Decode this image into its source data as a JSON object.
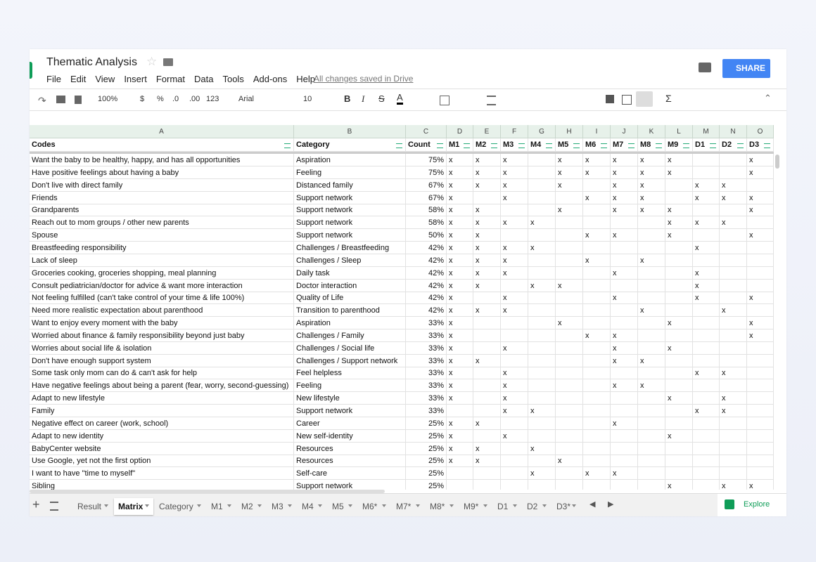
{
  "doc_title": "Thematic Analysis",
  "menu": [
    "File",
    "Edit",
    "View",
    "Insert",
    "Format",
    "Data",
    "Tools",
    "Add-ons",
    "Help"
  ],
  "save_status": "All changes saved in Drive",
  "share": "SHARE",
  "toolbar": {
    "zoom": "100%",
    "currency": "$",
    "percent": "%",
    "dec_less": ".0",
    "dec_more": ".00",
    "format": "123",
    "font": "Arial",
    "size": "10"
  },
  "column_letters": [
    "A",
    "B",
    "C",
    "D",
    "E",
    "F",
    "G",
    "H",
    "I",
    "J",
    "K",
    "L",
    "M",
    "N",
    "O"
  ],
  "headers": [
    "Codes",
    "Category",
    "Count",
    "M1",
    "M2",
    "M3",
    "M4",
    "M5",
    "M6",
    "M7",
    "M8",
    "M9",
    "D1",
    "D2",
    "D3"
  ],
  "rows": [
    {
      "code": "Want the baby to be healthy, happy, and has all opportunities",
      "category": "Aspiration",
      "count": "75%",
      "cells": {
        "M1": "x",
        "M2": "x",
        "M3": "x",
        "M5": "x",
        "M6": "x",
        "M7": "x",
        "M8": "x",
        "M9": "x",
        "D3": "x"
      }
    },
    {
      "code": "Have positive feelings about having a baby",
      "category": "Feeling",
      "count": "75%",
      "cells": {
        "M1": "x",
        "M2": "x",
        "M3": "x",
        "M5": "x",
        "M6": "x",
        "M7": "x",
        "M8": "x",
        "M9": "x",
        "D3": "x"
      }
    },
    {
      "code": "Don't live with direct family",
      "category": "Distanced family",
      "count": "67%",
      "cells": {
        "M1": "x",
        "M2": "x",
        "M3": "x",
        "M5": "x",
        "M7": "x",
        "M8": "x",
        "D1": "x",
        "D2": "x"
      }
    },
    {
      "code": "Friends",
      "category": "Support network",
      "count": "67%",
      "cells": {
        "M1": "x",
        "M3": "x",
        "M6": "x",
        "M7": "x",
        "M8": "x",
        "D1": "x",
        "D2": "x",
        "D3": "x"
      }
    },
    {
      "code": "Grandparents",
      "category": "Support network",
      "count": "58%",
      "cells": {
        "M1": "x",
        "M2": "x",
        "M5": "x",
        "M7": "x",
        "M8": "x",
        "M9": "x",
        "D3": "x"
      }
    },
    {
      "code": "Reach out to mom groups / other new parents",
      "category": "Support network",
      "count": "58%",
      "cells": {
        "M1": "x",
        "M2": "x",
        "M3": "x",
        "M4": "x",
        "M9": "x",
        "D1": "x",
        "D2": "x"
      }
    },
    {
      "code": "Spouse",
      "category": "Support network",
      "count": "50%",
      "cells": {
        "M1": "x",
        "M2": "x",
        "M6": "x",
        "M7": "x",
        "M9": "x",
        "D3": "x"
      }
    },
    {
      "code": "Breastfeeding responsibility",
      "category": "Challenges / Breastfeeding",
      "count": "42%",
      "cells": {
        "M1": "x",
        "M2": "x",
        "M3": "x",
        "M4": "x",
        "D1": "x"
      }
    },
    {
      "code": "Lack of sleep",
      "category": "Challenges / Sleep",
      "count": "42%",
      "cells": {
        "M1": "x",
        "M2": "x",
        "M3": "x",
        "M6": "x",
        "M8": "x"
      }
    },
    {
      "code": "Groceries cooking, groceries shopping, meal planning",
      "category": "Daily task",
      "count": "42%",
      "cells": {
        "M1": "x",
        "M2": "x",
        "M3": "x",
        "M7": "x",
        "D1": "x"
      }
    },
    {
      "code": "Consult pediatrician/doctor for advice & want more interaction",
      "category": "Doctor interaction",
      "count": "42%",
      "cells": {
        "M1": "x",
        "M2": "x",
        "M4": "x",
        "M5": "x",
        "D1": "x"
      }
    },
    {
      "code": "Not feeling fulfilled (can't take control of your time & life 100%)",
      "category": "Quality of Life",
      "count": "42%",
      "cells": {
        "M1": "x",
        "M3": "x",
        "M7": "x",
        "D1": "x",
        "D3": "x"
      }
    },
    {
      "code": "Need more realistic expectation about parenthood",
      "category": "Transition to parenthood",
      "count": "42%",
      "cells": {
        "M1": "x",
        "M2": "x",
        "M3": "x",
        "M8": "x",
        "D2": "x"
      }
    },
    {
      "code": "Want to enjoy every moment with the baby",
      "category": "Aspiration",
      "count": "33%",
      "cells": {
        "M1": "x",
        "M5": "x",
        "M9": "x",
        "D3": "x"
      }
    },
    {
      "code": "Worried about finance & family responsibility beyond just baby",
      "category": "Challenges / Family",
      "count": "33%",
      "cells": {
        "M1": "x",
        "M6": "x",
        "M7": "x",
        "D3": "x"
      }
    },
    {
      "code": "Worries about social life & isolation",
      "category": "Challenges / Social life",
      "count": "33%",
      "cells": {
        "M1": "x",
        "M3": "x",
        "M7": "x",
        "M9": "x"
      }
    },
    {
      "code": "Don't have enough support system",
      "category": "Challenges / Support network",
      "count": "33%",
      "cells": {
        "M1": "x",
        "M2": "x",
        "M7": "x",
        "M8": "x"
      }
    },
    {
      "code": "Some task only mom can do & can't ask for help",
      "category": "Feel helpless",
      "count": "33%",
      "cells": {
        "M1": "x",
        "M3": "x",
        "D1": "x",
        "D2": "x"
      }
    },
    {
      "code": "Have negative feelings about being a parent (fear, worry, second-guessing)",
      "category": "Feeling",
      "count": "33%",
      "cells": {
        "M1": "x",
        "M3": "x",
        "M7": "x",
        "M8": "x"
      }
    },
    {
      "code": "Adapt to new lifestyle",
      "category": "New lifestyle",
      "count": "33%",
      "cells": {
        "M1": "x",
        "M3": "x",
        "M9": "x",
        "D2": "x"
      }
    },
    {
      "code": "Family",
      "category": "Support network",
      "count": "33%",
      "cells": {
        "M3": "x",
        "M4": "x",
        "D1": "x",
        "D2": "x"
      }
    },
    {
      "code": "Negative effect on career (work, school)",
      "category": "Career",
      "count": "25%",
      "cells": {
        "M1": "x",
        "M2": "x",
        "M7": "x"
      }
    },
    {
      "code": "Adapt to new identity",
      "category": "New self-identity",
      "count": "25%",
      "cells": {
        "M1": "x",
        "M3": "x",
        "M9": "x"
      }
    },
    {
      "code": "BabyCenter website",
      "category": "Resources",
      "count": "25%",
      "cells": {
        "M1": "x",
        "M2": "x",
        "M4": "x"
      }
    },
    {
      "code": "Use Google, yet not the first option",
      "category": "Resources",
      "count": "25%",
      "cells": {
        "M1": "x",
        "M2": "x",
        "M5": "x"
      }
    },
    {
      "code": "I want to have \"time to myself\"",
      "category": "Self-care",
      "count": "25%",
      "cells": {
        "M4": "x",
        "M6": "x",
        "M7": "x"
      }
    },
    {
      "code": "Sibling",
      "category": "Support network",
      "count": "25%",
      "cells": {
        "M9": "x",
        "D2": "x",
        "D3": "x"
      }
    }
  ],
  "tabs": [
    "Result",
    "Matrix",
    "Category",
    "M1",
    "M2",
    "M3",
    "M4",
    "M5",
    "M6*",
    "M7*",
    "M8*",
    "M9*",
    "D1",
    "D2",
    "D3*"
  ],
  "active_tab": "Matrix",
  "explore": "Explore"
}
